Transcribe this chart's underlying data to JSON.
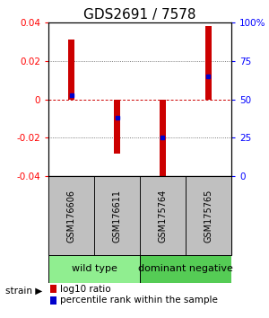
{
  "title": "GDS2691 / 7578",
  "samples": [
    "GSM176606",
    "GSM176611",
    "GSM175764",
    "GSM175765"
  ],
  "log10_ratio": [
    0.031,
    -0.028,
    -0.04,
    0.038
  ],
  "percentile_rank": [
    0.525,
    0.382,
    0.25,
    0.65
  ],
  "ylim_left": [
    -0.04,
    0.04
  ],
  "ylim_right": [
    0,
    100
  ],
  "yticks_left": [
    -0.04,
    -0.02,
    0,
    0.02,
    0.04
  ],
  "ytick_labels_left": [
    "-0.04",
    "-0.02",
    "0",
    "0.02",
    "0.04"
  ],
  "yticks_right": [
    0,
    25,
    50,
    75,
    100
  ],
  "ytick_labels_right": [
    "0",
    "25",
    "50",
    "75",
    "100%"
  ],
  "groups": [
    {
      "label": "wild type",
      "samples": [
        0,
        1
      ],
      "color": "#90EE90"
    },
    {
      "label": "dominant negative",
      "samples": [
        2,
        3
      ],
      "color": "#55CC55"
    }
  ],
  "bar_color": "#CC0000",
  "blue_marker_color": "#0000CC",
  "bar_width": 0.12,
  "zero_line_color": "#CC0000",
  "dotted_line_color": "#555555",
  "sample_box_color": "#C0C0C0",
  "title_fontsize": 11,
  "tick_fontsize": 7.5,
  "label_fontsize": 7,
  "legend_fontsize": 7.5,
  "group_fontsize": 8
}
